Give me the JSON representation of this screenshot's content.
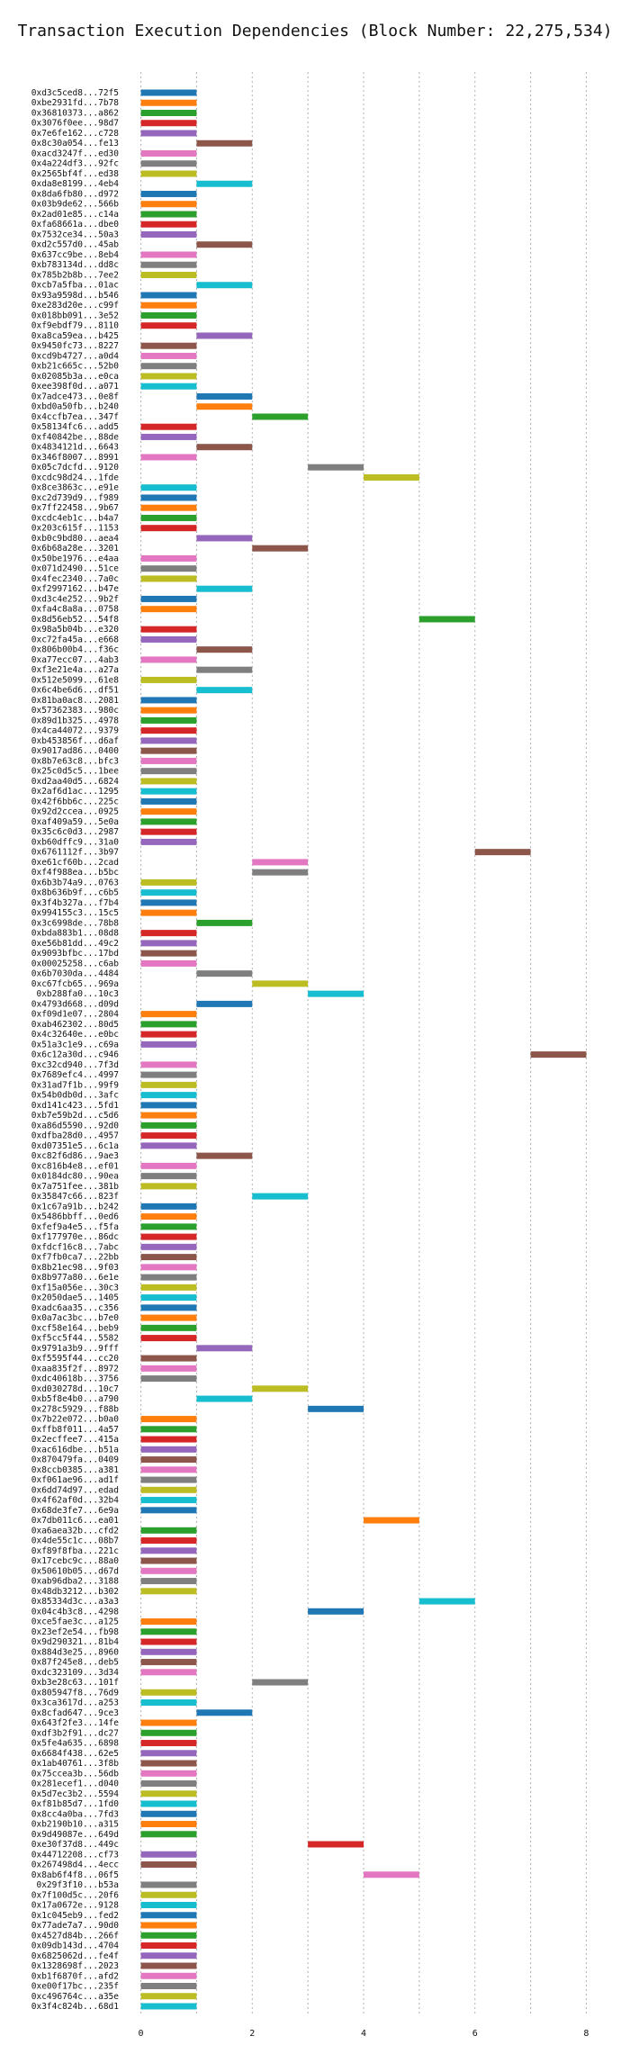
{
  "chart_data": {
    "type": "bar",
    "orientation": "horizontal-gantt",
    "title": "Transaction Execution Dependencies (Block Number: 22,275,534)",
    "xlabel": "",
    "ylabel": "",
    "xlim": [
      -0.3,
      8.3
    ],
    "x_ticks": [
      0,
      2,
      4,
      6,
      8
    ],
    "grid": true,
    "palette": [
      "#1f77b4",
      "#ff7f0e",
      "#2ca02c",
      "#d62728",
      "#9467bd",
      "#8c564b",
      "#e377c2",
      "#7f7f7f",
      "#bcbd22",
      "#17becf"
    ],
    "transactions": [
      {
        "label": "0xd3c5ced8...72f5",
        "start": 0,
        "end": 1
      },
      {
        "label": "0xbe2931fd...7b78",
        "start": 0,
        "end": 1
      },
      {
        "label": "0x36810373...a862",
        "start": 0,
        "end": 1
      },
      {
        "label": "0x3076f0ee...98d7",
        "start": 0,
        "end": 1
      },
      {
        "label": "0x7e6fe162...c728",
        "start": 0,
        "end": 1
      },
      {
        "label": "0x8c30a054...fe13",
        "start": 1,
        "end": 2
      },
      {
        "label": "0xacd3247f...ed30",
        "start": 0,
        "end": 1
      },
      {
        "label": "0x4a224df3...92fc",
        "start": 0,
        "end": 1
      },
      {
        "label": "0x2565bf4f...ed38",
        "start": 0,
        "end": 1
      },
      {
        "label": "0xda8e8199...4eb4",
        "start": 1,
        "end": 2
      },
      {
        "label": "0x8da6fb80...d972",
        "start": 0,
        "end": 1
      },
      {
        "label": "0x03b9de62...566b",
        "start": 0,
        "end": 1
      },
      {
        "label": "0x2ad01e85...c14a",
        "start": 0,
        "end": 1
      },
      {
        "label": "0xfa68661a...dbe0",
        "start": 0,
        "end": 1
      },
      {
        "label": "0x7532ce34...50a3",
        "start": 0,
        "end": 1
      },
      {
        "label": "0xd2c557d0...45ab",
        "start": 1,
        "end": 2
      },
      {
        "label": "0x637cc9be...8eb4",
        "start": 0,
        "end": 1
      },
      {
        "label": "0xb783134d...dd8c",
        "start": 0,
        "end": 1
      },
      {
        "label": "0x785b2b8b...7ee2",
        "start": 0,
        "end": 1
      },
      {
        "label": "0xcb7a5fba...01ac",
        "start": 1,
        "end": 2
      },
      {
        "label": "0x93a9598d...b546",
        "start": 0,
        "end": 1
      },
      {
        "label": "0xe283d20e...c99f",
        "start": 0,
        "end": 1
      },
      {
        "label": "0x018bb091...3e52",
        "start": 0,
        "end": 1
      },
      {
        "label": "0xf9ebdf79...8110",
        "start": 0,
        "end": 1
      },
      {
        "label": "0xa8ca59ea...b425",
        "start": 1,
        "end": 2
      },
      {
        "label": "0x9450fc73...8227",
        "start": 0,
        "end": 1
      },
      {
        "label": "0xcd9b4727...a0d4",
        "start": 0,
        "end": 1
      },
      {
        "label": "0xb21c665c...52b0",
        "start": 0,
        "end": 1
      },
      {
        "label": "0x02085b3a...e0ca",
        "start": 0,
        "end": 1
      },
      {
        "label": "0xee398f0d...a071",
        "start": 0,
        "end": 1
      },
      {
        "label": "0x7adce473...0e8f",
        "start": 1,
        "end": 2
      },
      {
        "label": "0xbd0a50fb...b240",
        "start": 1,
        "end": 2
      },
      {
        "label": "0x4ccfb7ea...347f",
        "start": 2,
        "end": 3
      },
      {
        "label": "0x58134fc6...add5",
        "start": 0,
        "end": 1
      },
      {
        "label": "0xf40842be...88de",
        "start": 0,
        "end": 1
      },
      {
        "label": "0x4834121d...6643",
        "start": 1,
        "end": 2
      },
      {
        "label": "0x346f8007...8991",
        "start": 0,
        "end": 1
      },
      {
        "label": "0x05c7dcfd...9120",
        "start": 3,
        "end": 4
      },
      {
        "label": "0xcdc98d24...1fde",
        "start": 4,
        "end": 5
      },
      {
        "label": "0x8ce3863c...e91e",
        "start": 0,
        "end": 1
      },
      {
        "label": "0xc2d739d9...f989",
        "start": 0,
        "end": 1
      },
      {
        "label": "0x7ff22458...9b67",
        "start": 0,
        "end": 1
      },
      {
        "label": "0xcdc4eb1c...b4a7",
        "start": 0,
        "end": 1
      },
      {
        "label": "0x203c615f...1153",
        "start": 0,
        "end": 1
      },
      {
        "label": "0xb0c9bd80...aea4",
        "start": 1,
        "end": 2
      },
      {
        "label": "0x6b68a28e...3201",
        "start": 2,
        "end": 3
      },
      {
        "label": "0x50be1976...e4aa",
        "start": 0,
        "end": 1
      },
      {
        "label": "0x071d2490...51ce",
        "start": 0,
        "end": 1
      },
      {
        "label": "0x4fec2340...7a0c",
        "start": 0,
        "end": 1
      },
      {
        "label": "0xf2997162...b47e",
        "start": 1,
        "end": 2
      },
      {
        "label": "0xd3c4e252...9b2f",
        "start": 0,
        "end": 1
      },
      {
        "label": "0xfa4c8a8a...0758",
        "start": 0,
        "end": 1
      },
      {
        "label": "0x8d56eb52...54f8",
        "start": 5,
        "end": 6
      },
      {
        "label": "0x98a5b04b...e320",
        "start": 0,
        "end": 1
      },
      {
        "label": "0xc72fa45a...e668",
        "start": 0,
        "end": 1
      },
      {
        "label": "0x806b00b4...f36c",
        "start": 1,
        "end": 2
      },
      {
        "label": "0xa77ecc07...4ab3",
        "start": 0,
        "end": 1
      },
      {
        "label": "0xf3e21e4a...a27a",
        "start": 1,
        "end": 2
      },
      {
        "label": "0x512e5099...61e8",
        "start": 0,
        "end": 1
      },
      {
        "label": "0x6c4be6d6...df51",
        "start": 1,
        "end": 2
      },
      {
        "label": "0x81ba0ac8...2081",
        "start": 0,
        "end": 1
      },
      {
        "label": "0x57362383...980c",
        "start": 0,
        "end": 1
      },
      {
        "label": "0x89d1b325...4978",
        "start": 0,
        "end": 1
      },
      {
        "label": "0x4ca44072...9379",
        "start": 0,
        "end": 1
      },
      {
        "label": "0xb453856f...d6af",
        "start": 0,
        "end": 1
      },
      {
        "label": "0x9017ad86...0400",
        "start": 0,
        "end": 1
      },
      {
        "label": "0x8b7e63c8...bfc3",
        "start": 0,
        "end": 1
      },
      {
        "label": "0x25c0d5c5...1bee",
        "start": 0,
        "end": 1
      },
      {
        "label": "0xd2aa40d5...6824",
        "start": 0,
        "end": 1
      },
      {
        "label": "0x2af6d1ac...1295",
        "start": 0,
        "end": 1
      },
      {
        "label": "0x42f6bb6c...225c",
        "start": 0,
        "end": 1
      },
      {
        "label": "0x92d2ccea...0925",
        "start": 0,
        "end": 1
      },
      {
        "label": "0xaf409a59...5e0a",
        "start": 0,
        "end": 1
      },
      {
        "label": "0x35c6c0d3...2987",
        "start": 0,
        "end": 1
      },
      {
        "label": "0xb60dffc9...31a0",
        "start": 0,
        "end": 1
      },
      {
        "label": "0x6761112f...3b97",
        "start": 6,
        "end": 7
      },
      {
        "label": "0xe61cf60b...2cad",
        "start": 2,
        "end": 3
      },
      {
        "label": "0xf4f988ea...b5bc",
        "start": 2,
        "end": 3
      },
      {
        "label": "0x6b3b74a9...0763",
        "start": 0,
        "end": 1
      },
      {
        "label": "0x8b636b9f...c6b5",
        "start": 0,
        "end": 1
      },
      {
        "label": "0x3f4b327a...f7b4",
        "start": 0,
        "end": 1
      },
      {
        "label": "0x994155c3...15c5",
        "start": 0,
        "end": 1
      },
      {
        "label": "0x3c6998de...78b8",
        "start": 1,
        "end": 2
      },
      {
        "label": "0xbda883b1...08d8",
        "start": 0,
        "end": 1
      },
      {
        "label": "0xe56b81dd...49c2",
        "start": 0,
        "end": 1
      },
      {
        "label": "0x9093bfbc...17bd",
        "start": 0,
        "end": 1
      },
      {
        "label": "0x00025258...c6ab",
        "start": 0,
        "end": 1
      },
      {
        "label": "0x6b7030da...4484",
        "start": 1,
        "end": 2
      },
      {
        "label": "0xc67fcb65...969a",
        "start": 2,
        "end": 3
      },
      {
        "label": "0xb288fa0...10c3",
        "start": 3,
        "end": 4
      },
      {
        "label": "0x4793d668...d09d",
        "start": 1,
        "end": 2
      },
      {
        "label": "0xf09d1e07...2804",
        "start": 0,
        "end": 1
      },
      {
        "label": "0xab462302...80d5",
        "start": 0,
        "end": 1
      },
      {
        "label": "0x4c32640e...e0bc",
        "start": 0,
        "end": 1
      },
      {
        "label": "0x51a3c1e9...c69a",
        "start": 0,
        "end": 1
      },
      {
        "label": "0x6c12a30d...c946",
        "start": 7,
        "end": 8
      },
      {
        "label": "0xc32cd940...7f3d",
        "start": 0,
        "end": 1
      },
      {
        "label": "0x7689efc4...4997",
        "start": 0,
        "end": 1
      },
      {
        "label": "0x31ad7f1b...99f9",
        "start": 0,
        "end": 1
      },
      {
        "label": "0x54b0db0d...3afc",
        "start": 0,
        "end": 1
      },
      {
        "label": "0xd141c423...5fd1",
        "start": 0,
        "end": 1
      },
      {
        "label": "0xb7e59b2d...c5d6",
        "start": 0,
        "end": 1
      },
      {
        "label": "0xa86d5590...92d0",
        "start": 0,
        "end": 1
      },
      {
        "label": "0xdfba28d0...4957",
        "start": 0,
        "end": 1
      },
      {
        "label": "0xd07351e5...6c1a",
        "start": 0,
        "end": 1
      },
      {
        "label": "0xc82f6d86...9ae3",
        "start": 1,
        "end": 2
      },
      {
        "label": "0xc816b4e8...ef01",
        "start": 0,
        "end": 1
      },
      {
        "label": "0x0184dc80...90ea",
        "start": 0,
        "end": 1
      },
      {
        "label": "0x7a751fee...381b",
        "start": 0,
        "end": 1
      },
      {
        "label": "0x35847c66...823f",
        "start": 2,
        "end": 3
      },
      {
        "label": "0x1c67a91b...b242",
        "start": 0,
        "end": 1
      },
      {
        "label": "0x5486bbff...0ed6",
        "start": 0,
        "end": 1
      },
      {
        "label": "0xfef9a4e5...f5fa",
        "start": 0,
        "end": 1
      },
      {
        "label": "0xf177970e...86dc",
        "start": 0,
        "end": 1
      },
      {
        "label": "0xfdcf16c8...7abc",
        "start": 0,
        "end": 1
      },
      {
        "label": "0xf7fb0ca7...22bb",
        "start": 0,
        "end": 1
      },
      {
        "label": "0x8b21ec98...9f03",
        "start": 0,
        "end": 1
      },
      {
        "label": "0x8b977a80...6e1e",
        "start": 0,
        "end": 1
      },
      {
        "label": "0xf15a056e...30c3",
        "start": 0,
        "end": 1
      },
      {
        "label": "0x2050dae5...1405",
        "start": 0,
        "end": 1
      },
      {
        "label": "0xadc6aa35...c356",
        "start": 0,
        "end": 1
      },
      {
        "label": "0x0a7ac3bc...b7e0",
        "start": 0,
        "end": 1
      },
      {
        "label": "0xcf58e164...beb9",
        "start": 0,
        "end": 1
      },
      {
        "label": "0xf5cc5f44...5582",
        "start": 0,
        "end": 1
      },
      {
        "label": "0x9791a3b9...9fff",
        "start": 1,
        "end": 2
      },
      {
        "label": "0xf5595f44...cc20",
        "start": 0,
        "end": 1
      },
      {
        "label": "0xaa835f2f...8972",
        "start": 0,
        "end": 1
      },
      {
        "label": "0xdc40618b...3756",
        "start": 0,
        "end": 1
      },
      {
        "label": "0xd030278d...10c7",
        "start": 2,
        "end": 3
      },
      {
        "label": "0xb5f8e4b0...a790",
        "start": 1,
        "end": 2
      },
      {
        "label": "0x278c5929...f88b",
        "start": 3,
        "end": 4
      },
      {
        "label": "0x7b22e072...b0a0",
        "start": 0,
        "end": 1
      },
      {
        "label": "0xffb8f011...4a57",
        "start": 0,
        "end": 1
      },
      {
        "label": "0x2ecffee7...415a",
        "start": 0,
        "end": 1
      },
      {
        "label": "0xac616dbe...b51a",
        "start": 0,
        "end": 1
      },
      {
        "label": "0x870479fa...0409",
        "start": 0,
        "end": 1
      },
      {
        "label": "0x8ccb0385...a381",
        "start": 0,
        "end": 1
      },
      {
        "label": "0xf061ae96...ad1f",
        "start": 0,
        "end": 1
      },
      {
        "label": "0x6dd74d97...edad",
        "start": 0,
        "end": 1
      },
      {
        "label": "0x4f62af0d...32b4",
        "start": 0,
        "end": 1
      },
      {
        "label": "0x68de3fe7...6e9a",
        "start": 0,
        "end": 1
      },
      {
        "label": "0x7db011c6...ea01",
        "start": 4,
        "end": 5
      },
      {
        "label": "0xa6aea32b...cfd2",
        "start": 0,
        "end": 1
      },
      {
        "label": "0x4de55c1c...08b7",
        "start": 0,
        "end": 1
      },
      {
        "label": "0xf89f8fba...221c",
        "start": 0,
        "end": 1
      },
      {
        "label": "0x17cebc9c...88a0",
        "start": 0,
        "end": 1
      },
      {
        "label": "0x50610b05...d67d",
        "start": 0,
        "end": 1
      },
      {
        "label": "0xab96dba2...3188",
        "start": 0,
        "end": 1
      },
      {
        "label": "0x48db3212...b302",
        "start": 0,
        "end": 1
      },
      {
        "label": "0x85334d3c...a3a3",
        "start": 5,
        "end": 6
      },
      {
        "label": "0x04c4b3c8...4298",
        "start": 3,
        "end": 4
      },
      {
        "label": "0xce5fae3c...a125",
        "start": 0,
        "end": 1
      },
      {
        "label": "0x23ef2e54...fb98",
        "start": 0,
        "end": 1
      },
      {
        "label": "0x9d290321...81b4",
        "start": 0,
        "end": 1
      },
      {
        "label": "0x884d3e25...8960",
        "start": 0,
        "end": 1
      },
      {
        "label": "0x87f245e8...deb5",
        "start": 0,
        "end": 1
      },
      {
        "label": "0xdc323109...3d34",
        "start": 0,
        "end": 1
      },
      {
        "label": "0xb3e28c63...101f",
        "start": 2,
        "end": 3
      },
      {
        "label": "0x805947f8...76d9",
        "start": 0,
        "end": 1
      },
      {
        "label": "0x3ca3617d...a253",
        "start": 0,
        "end": 1
      },
      {
        "label": "0x8cfad647...9ce3",
        "start": 1,
        "end": 2
      },
      {
        "label": "0x643f2fe3...14fe",
        "start": 0,
        "end": 1
      },
      {
        "label": "0xdf3b2f91...dc27",
        "start": 0,
        "end": 1
      },
      {
        "label": "0x5fe4a635...6898",
        "start": 0,
        "end": 1
      },
      {
        "label": "0x6684f438...62e5",
        "start": 0,
        "end": 1
      },
      {
        "label": "0x1ab40761...3f8b",
        "start": 0,
        "end": 1
      },
      {
        "label": "0x75ccea3b...56db",
        "start": 0,
        "end": 1
      },
      {
        "label": "0x281ecef1...d040",
        "start": 0,
        "end": 1
      },
      {
        "label": "0x5d7ec3b2...5594",
        "start": 0,
        "end": 1
      },
      {
        "label": "0xf81b85d7...1fd0",
        "start": 0,
        "end": 1
      },
      {
        "label": "0x8cc4a0ba...7fd3",
        "start": 0,
        "end": 1
      },
      {
        "label": "0xb2190b10...a315",
        "start": 0,
        "end": 1
      },
      {
        "label": "0x9d49087e...649d",
        "start": 0,
        "end": 1
      },
      {
        "label": "0xe30f37d8...449c",
        "start": 3,
        "end": 4
      },
      {
        "label": "0x44712208...cf73",
        "start": 0,
        "end": 1
      },
      {
        "label": "0x267498d4...4ecc",
        "start": 0,
        "end": 1
      },
      {
        "label": "0x8ab6f4f8...06f5",
        "start": 4,
        "end": 5
      },
      {
        "label": "0x29f3f10...b53a",
        "start": 0,
        "end": 1
      },
      {
        "label": "0x7f100d5c...20f6",
        "start": 0,
        "end": 1
      },
      {
        "label": "0x17a0672e...9128",
        "start": 0,
        "end": 1
      },
      {
        "label": "0x1c045eb9...fed2",
        "start": 0,
        "end": 1
      },
      {
        "label": "0x77ade7a7...90d0",
        "start": 0,
        "end": 1
      },
      {
        "label": "0x4527d84b...266f",
        "start": 0,
        "end": 1
      },
      {
        "label": "0x09db143d...4704",
        "start": 0,
        "end": 1
      },
      {
        "label": "0x6825062d...fe4f",
        "start": 0,
        "end": 1
      },
      {
        "label": "0x1328698f...2023",
        "start": 0,
        "end": 1
      },
      {
        "label": "0xb1f6870f...afd2",
        "start": 0,
        "end": 1
      },
      {
        "label": "0xe00f17bc...235f",
        "start": 0,
        "end": 1
      },
      {
        "label": "0xc496764c...a35e",
        "start": 0,
        "end": 1
      },
      {
        "label": "0x3f4c824b...68d1",
        "start": 0,
        "end": 1
      }
    ]
  }
}
